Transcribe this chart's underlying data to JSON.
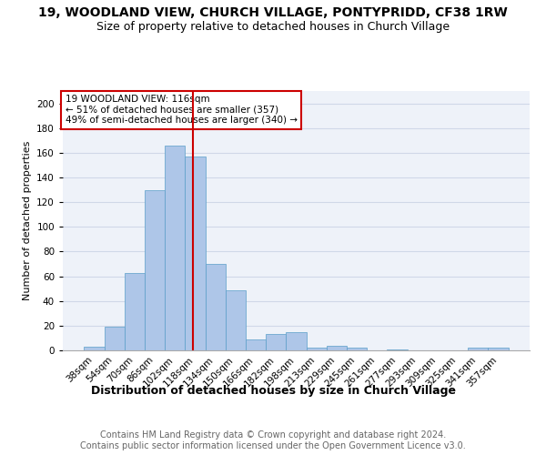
{
  "title": "19, WOODLAND VIEW, CHURCH VILLAGE, PONTYPRIDD, CF38 1RW",
  "subtitle": "Size of property relative to detached houses in Church Village",
  "xlabel": "Distribution of detached houses by size in Church Village",
  "ylabel": "Number of detached properties",
  "categories": [
    "38sqm",
    "54sqm",
    "70sqm",
    "86sqm",
    "102sqm",
    "118sqm",
    "134sqm",
    "150sqm",
    "166sqm",
    "182sqm",
    "198sqm",
    "213sqm",
    "229sqm",
    "245sqm",
    "261sqm",
    "277sqm",
    "293sqm",
    "309sqm",
    "325sqm",
    "341sqm",
    "357sqm"
  ],
  "values": [
    3,
    19,
    63,
    130,
    166,
    157,
    70,
    49,
    9,
    13,
    15,
    2,
    4,
    2,
    0,
    1,
    0,
    0,
    0,
    2,
    2
  ],
  "bar_color": "#aec6e8",
  "bar_edgecolor": "#5a9ec8",
  "bar_width": 1.0,
  "annotation_box_text": "19 WOODLAND VIEW: 116sqm\n← 51% of detached houses are smaller (357)\n49% of semi-detached houses are larger (340) →",
  "annotation_box_color": "#cc0000",
  "ylim": [
    0,
    210
  ],
  "yticks": [
    0,
    20,
    40,
    60,
    80,
    100,
    120,
    140,
    160,
    180,
    200
  ],
  "grid_color": "#d0d8e8",
  "background_color": "#eef2f9",
  "footer_text": "Contains HM Land Registry data © Crown copyright and database right 2024.\nContains public sector information licensed under the Open Government Licence v3.0.",
  "title_fontsize": 10,
  "subtitle_fontsize": 9,
  "xlabel_fontsize": 9,
  "ylabel_fontsize": 8,
  "tick_fontsize": 7.5,
  "footer_fontsize": 7,
  "annotation_fontsize": 7.5
}
